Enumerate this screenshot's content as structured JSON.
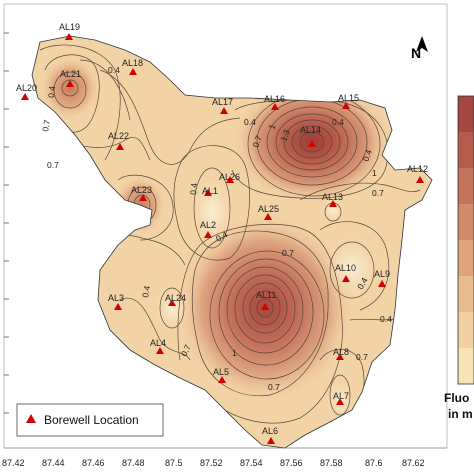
{
  "map": {
    "x_axis_ticks": [
      "87.42",
      "87.44",
      "87.46",
      "87.48",
      "87.5",
      "87.52",
      "87.54",
      "87.56",
      "87.58",
      "87.6",
      "87.62"
    ],
    "north_arrow_label": "N",
    "legend": {
      "symbol_label": "Borewell Location",
      "symbol_color": "#d40000"
    },
    "colorbar": {
      "title_line1": "Fluo",
      "title_line2": "in m",
      "colors": [
        "#f7e3b6",
        "#f1d1a2",
        "#e9bd8d",
        "#dfa479",
        "#d38c69",
        "#c4725a",
        "#b55b4b",
        "#a64640"
      ]
    },
    "wells": [
      "AL1",
      "AL2",
      "AL3",
      "AL4",
      "AL5",
      "AL6",
      "AL7",
      "AL8",
      "AL9",
      "AL10",
      "AL11",
      "AL12",
      "AL13",
      "AL14",
      "AL15",
      "AL16",
      "AL17",
      "AL18",
      "AL19",
      "AL20",
      "AL21",
      "AL22",
      "AL23",
      "AL24",
      "AL25",
      "AL26"
    ],
    "contour_labels": [
      "0.4",
      "0.4",
      "0.7",
      "1",
      "1.3",
      "0.7",
      "0.4",
      "0.4",
      "0.4",
      "0.4",
      "0.7",
      "0.4",
      "1",
      "0.7",
      "0.4",
      "0.7",
      "0.4",
      "0.7",
      "1",
      "0.7",
      "0.4",
      "0.7"
    ],
    "colors": {
      "base_fill": "#f2d3a6",
      "contour_line": "#5a4638",
      "border_line": "#333333"
    }
  }
}
